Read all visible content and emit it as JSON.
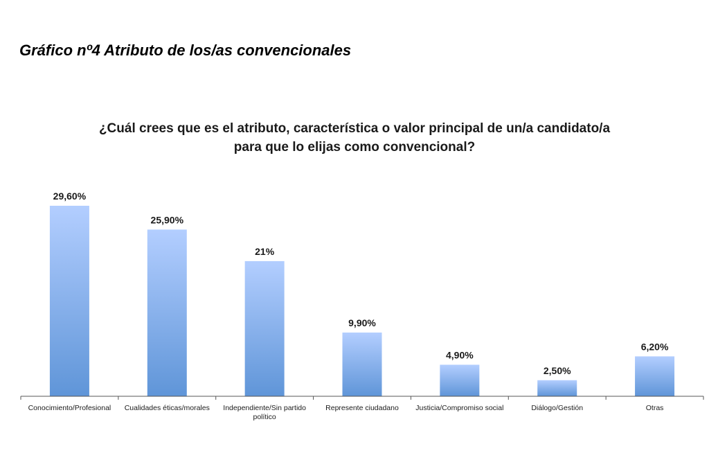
{
  "page": {
    "heading": "Gráfico nº4 Atributo de los/as convencionales"
  },
  "chart_data": {
    "type": "bar",
    "title_lines": [
      "¿Cuál crees que es el atributo, característica o valor principal de un/a candidato/a",
      "para que lo elijas como convencional?"
    ],
    "categories": [
      [
        "Conocimiento/Profesional"
      ],
      [
        "Cualidades éticas/morales"
      ],
      [
        "Independiente/Sin partido",
        "político"
      ],
      [
        "Represente ciudadano"
      ],
      [
        "Justicia/Compromiso social"
      ],
      [
        "Diálogo/Gestión"
      ],
      [
        "Otras"
      ]
    ],
    "values": [
      29.6,
      25.9,
      21,
      9.9,
      4.9,
      2.5,
      6.2
    ],
    "value_labels": [
      "29,60%",
      "25,90%",
      "21%",
      "9,90%",
      "4,90%",
      "2,50%",
      "6,20%"
    ],
    "xlabel": "",
    "ylabel": "",
    "ylim": [
      0,
      29.6
    ],
    "grid": false,
    "legend": "none",
    "colors": {
      "bar_top": "#b3ceff",
      "bar_bottom": "#5f95d8",
      "axis": "#555555"
    }
  }
}
